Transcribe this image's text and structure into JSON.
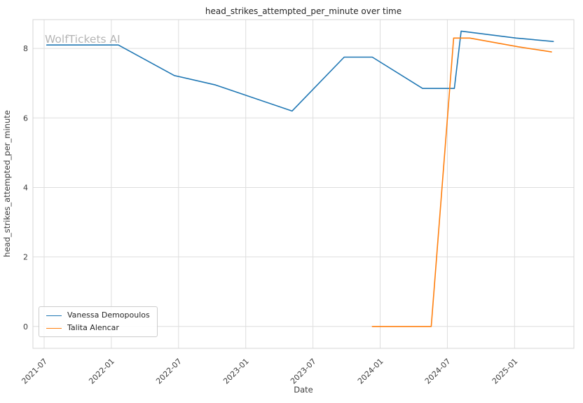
{
  "watermark": "WolfTickets AI",
  "chart_data": {
    "type": "line",
    "title": "head_strikes_attempted_per_minute over time",
    "xlabel": "Date",
    "ylabel": "head_strikes_attempted_per_minute",
    "grid": true,
    "legend_position": "lower left",
    "xlim": [
      "2021-06-01",
      "2025-06-10"
    ],
    "ylim": [
      -0.63,
      8.83
    ],
    "x_ticks": [
      "2021-07",
      "2022-01",
      "2022-07",
      "2023-01",
      "2023-07",
      "2024-01",
      "2024-07",
      "2025-01"
    ],
    "y_ticks": [
      0,
      2,
      4,
      6,
      8
    ],
    "series": [
      {
        "name": "Vanessa Demopoulos",
        "color": "#1f77b4",
        "points": [
          [
            "2021-07-08",
            8.1
          ],
          [
            "2022-01-20",
            8.1
          ],
          [
            "2022-06-20",
            7.22
          ],
          [
            "2022-10-10",
            6.95
          ],
          [
            "2023-05-05",
            6.2
          ],
          [
            "2023-09-25",
            7.75
          ],
          [
            "2023-12-10",
            7.75
          ],
          [
            "2024-04-25",
            6.85
          ],
          [
            "2024-07-20",
            6.85
          ],
          [
            "2024-08-08",
            8.5
          ],
          [
            "2025-01-05",
            8.3
          ],
          [
            "2025-04-15",
            8.2
          ]
        ]
      },
      {
        "name": "Talita Alencar",
        "color": "#ff7f0e",
        "points": [
          [
            "2023-12-10",
            0.0
          ],
          [
            "2024-02-01",
            0.0
          ],
          [
            "2024-05-18",
            0.0
          ],
          [
            "2024-07-18",
            8.3
          ],
          [
            "2024-09-01",
            8.3
          ],
          [
            "2025-01-10",
            8.05
          ],
          [
            "2025-04-10",
            7.9
          ]
        ]
      }
    ]
  }
}
